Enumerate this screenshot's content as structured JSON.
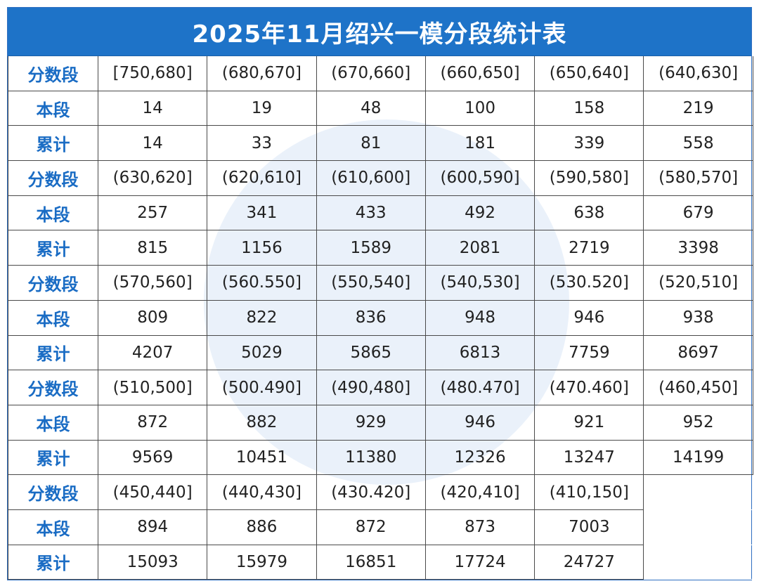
{
  "title": "2025年11月绍兴一模分段统计表",
  "labels": {
    "segment": "分数段",
    "count": "本段",
    "cumulative": "累计"
  },
  "blocks": [
    {
      "segments": [
        "[750,680]",
        "(680,670]",
        "(670,660]",
        "(660,650]",
        "(650,640]",
        "(640,630]"
      ],
      "counts": [
        "14",
        "19",
        "48",
        "100",
        "158",
        "219"
      ],
      "cumulative": [
        "14",
        "33",
        "81",
        "181",
        "339",
        "558"
      ]
    },
    {
      "segments": [
        "(630,620]",
        "(620,610]",
        "(610,600]",
        "(600,590]",
        "(590,580]",
        "(580,570]"
      ],
      "counts": [
        "257",
        "341",
        "433",
        "492",
        "638",
        "679"
      ],
      "cumulative": [
        "815",
        "1156",
        "1589",
        "2081",
        "2719",
        "3398"
      ]
    },
    {
      "segments": [
        "(570,560]",
        "(560.550]",
        "(550,540]",
        "(540,530]",
        "(530.520]",
        "(520,510]"
      ],
      "counts": [
        "809",
        "822",
        "836",
        "948",
        "946",
        "938"
      ],
      "cumulative": [
        "4207",
        "5029",
        "5865",
        "6813",
        "7759",
        "8697"
      ]
    },
    {
      "segments": [
        "(510,500]",
        "(500.490]",
        "(490,480]",
        "(480.470]",
        "(470.460]",
        "(460,450]"
      ],
      "counts": [
        "872",
        "882",
        "929",
        "946",
        "921",
        "952"
      ],
      "cumulative": [
        "9569",
        "10451",
        "11380",
        "12326",
        "13247",
        "14199"
      ]
    },
    {
      "segments": [
        "(450,440]",
        "(440,430]",
        "(430.420]",
        "(420,410]",
        "(410,150]",
        ""
      ],
      "counts": [
        "894",
        "886",
        "872",
        "873",
        "7003",
        ""
      ],
      "cumulative": [
        "15093",
        "15979",
        "16851",
        "17724",
        "24727",
        ""
      ]
    }
  ],
  "watermark": {
    "color": "#5a96d7",
    "shape": "circle"
  },
  "colors": {
    "header_bg": "#1e73c8",
    "label_text": "#1a6cc4",
    "border": "#4a4a4a"
  }
}
